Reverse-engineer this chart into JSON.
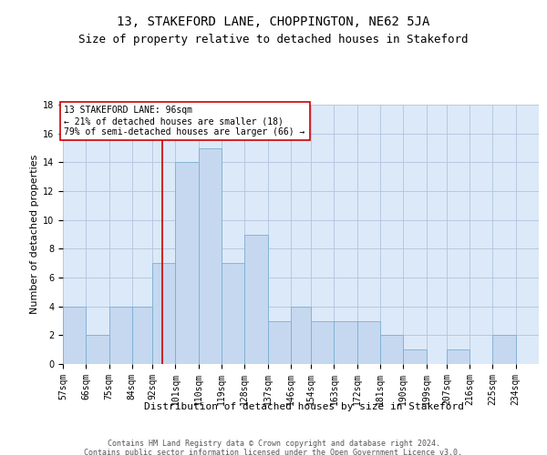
{
  "title": "13, STAKEFORD LANE, CHOPPINGTON, NE62 5JA",
  "subtitle": "Size of property relative to detached houses in Stakeford",
  "xlabel": "Distribution of detached houses by size in Stakeford",
  "ylabel": "Number of detached properties",
  "bin_edges": [
    57,
    66,
    75,
    84,
    92,
    101,
    110,
    119,
    128,
    137,
    146,
    154,
    163,
    172,
    181,
    190,
    199,
    207,
    216,
    225,
    234
  ],
  "bar_heights": [
    4,
    2,
    4,
    4,
    7,
    14,
    15,
    7,
    9,
    3,
    4,
    3,
    3,
    3,
    2,
    1,
    0,
    1,
    0,
    2
  ],
  "bar_facecolor": "#c5d8f0",
  "bar_edgecolor": "#7bafd4",
  "grid_color": "#b0c4de",
  "background_color": "#dce9f8",
  "red_line_x": 96,
  "annotation_lines": [
    "13 STAKEFORD LANE: 96sqm",
    "← 21% of detached houses are smaller (18)",
    "79% of semi-detached houses are larger (66) →"
  ],
  "annotation_box_color": "#ffffff",
  "annotation_box_edgecolor": "#cc0000",
  "red_line_color": "#cc0000",
  "ylim": [
    0,
    18
  ],
  "yticks": [
    0,
    2,
    4,
    6,
    8,
    10,
    12,
    14,
    16,
    18
  ],
  "footer_text": "Contains HM Land Registry data © Crown copyright and database right 2024.\nContains public sector information licensed under the Open Government Licence v3.0.",
  "title_fontsize": 10,
  "subtitle_fontsize": 9,
  "xlabel_fontsize": 8,
  "ylabel_fontsize": 8,
  "tick_fontsize": 7,
  "annotation_fontsize": 7,
  "footer_fontsize": 6
}
